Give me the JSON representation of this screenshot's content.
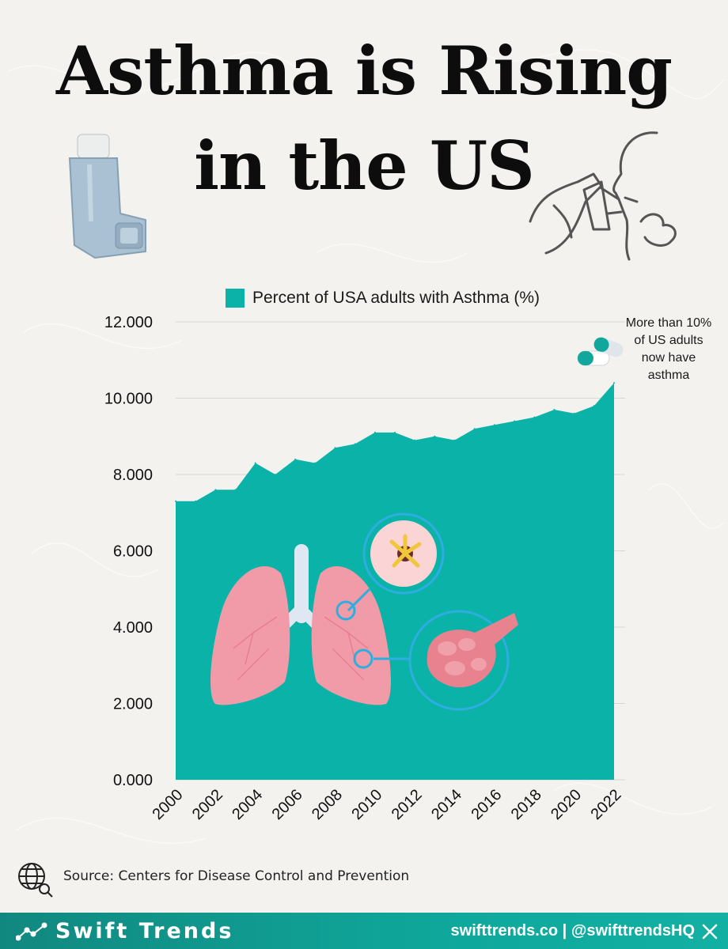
{
  "title": {
    "line1": "Asthma is Rising",
    "line2": "in the US"
  },
  "annotation": "More than 10% of US adults now have asthma",
  "source": "Source: Centers for Disease Control and Prevention",
  "footer": {
    "brand": "Swift Trends",
    "handle": "swifttrends.co | @swifttrendsHQ"
  },
  "colors": {
    "series": "#0bb2a7",
    "footer": "#0fa79b",
    "background": "#f3f2ef"
  },
  "chart_data": {
    "type": "area",
    "title": "",
    "xlabel": "",
    "ylabel": "",
    "series": [
      {
        "name": "Percent of USA adults with Asthma (%)",
        "x": [
          2000,
          2001,
          2002,
          2003,
          2004,
          2005,
          2006,
          2007,
          2008,
          2009,
          2010,
          2011,
          2012,
          2013,
          2014,
          2015,
          2016,
          2017,
          2018,
          2019,
          2020,
          2021,
          2022
        ],
        "values": [
          7.3,
          7.3,
          7.6,
          7.6,
          8.3,
          8.0,
          8.4,
          8.3,
          8.7,
          8.8,
          9.1,
          9.1,
          8.9,
          9.0,
          8.9,
          9.2,
          9.3,
          9.4,
          9.5,
          9.7,
          9.6,
          9.8,
          10.4
        ]
      }
    ],
    "ylim": [
      0,
      12
    ],
    "yticks": [
      0,
      2,
      4,
      6,
      8,
      10,
      12
    ],
    "ytick_labels": [
      "0.000",
      "2.000",
      "4.000",
      "6.000",
      "8.000",
      "10.000",
      "12.000"
    ],
    "xtick_labels": [
      "2000",
      "2002",
      "2004",
      "2006",
      "2008",
      "2010",
      "2012",
      "2014",
      "2016",
      "2018",
      "2020",
      "2022"
    ],
    "grid": true,
    "legend": "top"
  }
}
